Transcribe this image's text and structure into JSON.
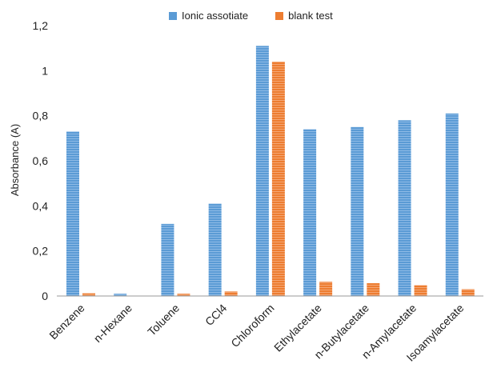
{
  "chart_data": {
    "type": "bar",
    "title": "",
    "xlabel": "",
    "ylabel": "Absorbance (A)",
    "ylim": [
      0,
      1.2
    ],
    "yticks": [
      "0",
      "0,2",
      "0,4",
      "0,6",
      "0,8",
      "1",
      "1,2"
    ],
    "categories": [
      "Benzene",
      "n-Hexane",
      "Toluene",
      "CCl4",
      "Chloroform",
      "Ethylacetate",
      "n-Butylacetate",
      "n-Amylacetate",
      "Isoamylacetate"
    ],
    "series": [
      {
        "name": "Ionic assotiate",
        "color": "#5b9bd5",
        "values": [
          0.73,
          0.01,
          0.32,
          0.41,
          1.11,
          0.74,
          0.75,
          0.78,
          0.81
        ]
      },
      {
        "name": "blank test",
        "color": "#ed7d31",
        "values": [
          0.012,
          0.0,
          0.01,
          0.02,
          1.04,
          0.063,
          0.057,
          0.048,
          0.03
        ]
      }
    ],
    "grid": false,
    "legend": "top"
  }
}
